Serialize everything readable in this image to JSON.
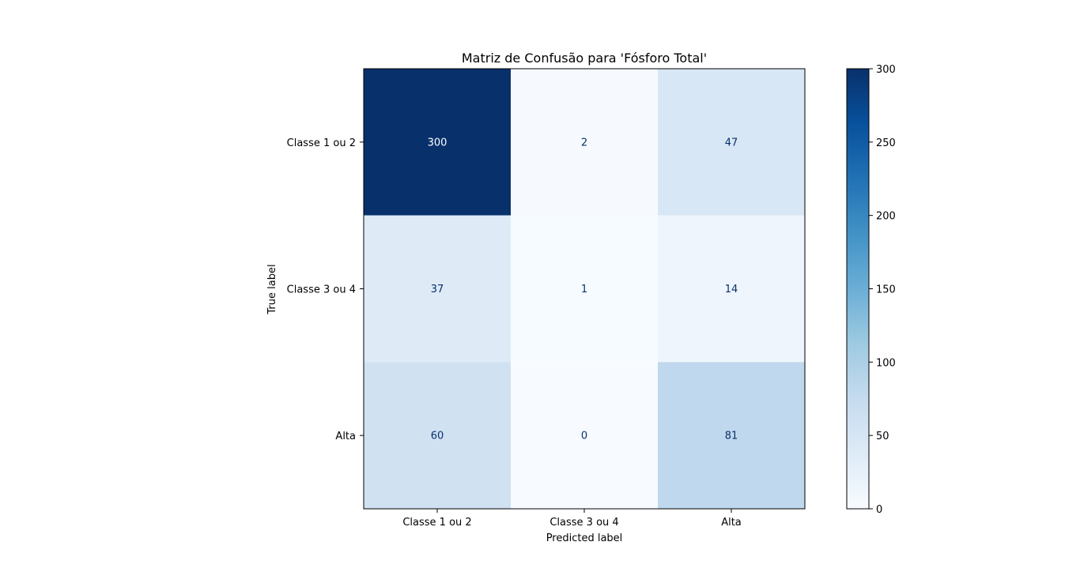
{
  "chart_data": {
    "type": "heatmap",
    "title": "Matriz de Confusão para 'Fósforo Total'",
    "xlabel": "Predicted label",
    "ylabel": "True label",
    "x_categories": [
      "Classe 1 ou 2",
      "Classe 3 ou 4",
      "Alta"
    ],
    "y_categories": [
      "Classe 1 ou 2",
      "Classe 3 ou 4",
      "Alta"
    ],
    "values": [
      [
        300,
        2,
        47
      ],
      [
        37,
        1,
        14
      ],
      [
        60,
        0,
        81
      ]
    ],
    "colormap": "Blues",
    "colorbar": {
      "range": [
        0,
        300
      ],
      "ticks": [
        0,
        50,
        100,
        150,
        200,
        250,
        300
      ]
    },
    "grid": false
  }
}
